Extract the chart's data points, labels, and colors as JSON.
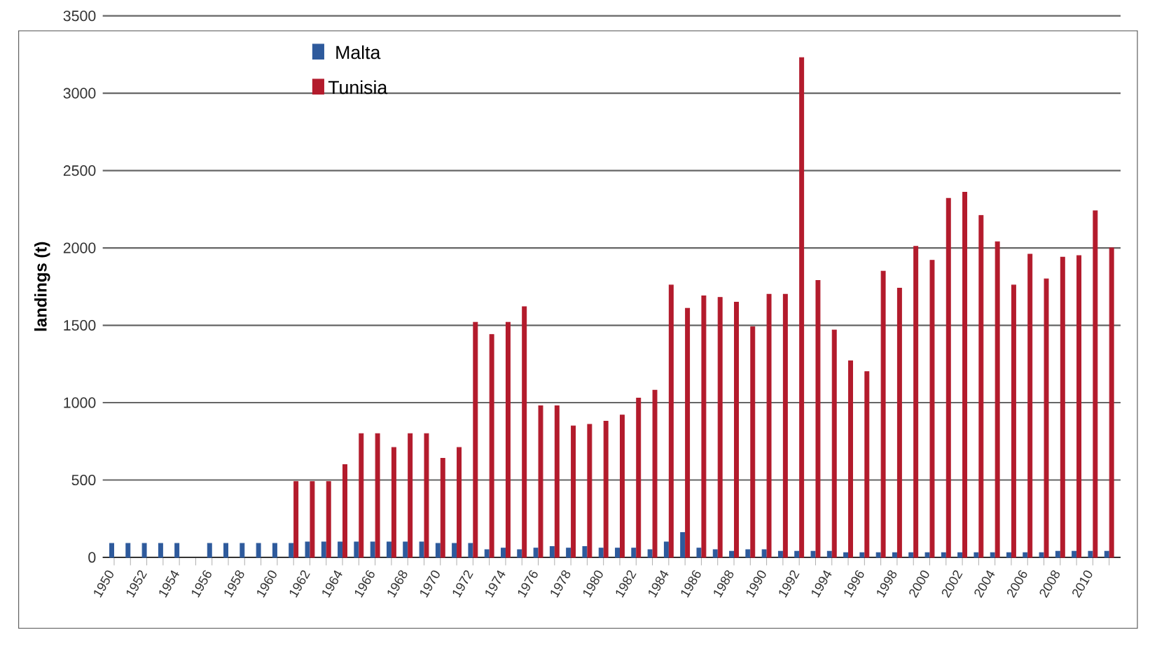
{
  "chart_data": {
    "type": "bar",
    "ylabel": "landings (t)",
    "categories": [
      "1950",
      null,
      "1952",
      null,
      "1954",
      null,
      "1956",
      null,
      "1958",
      null,
      "1960",
      null,
      "1962",
      null,
      "1964",
      null,
      "1966",
      null,
      "1968",
      null,
      "1970",
      null,
      "1972",
      null,
      "1974",
      null,
      "1976",
      null,
      "1978",
      null,
      "1980",
      null,
      "1982",
      null,
      "1984",
      null,
      "1986",
      null,
      "1988",
      null,
      "1990",
      null,
      "1992",
      null,
      "1994",
      null,
      "1996",
      null,
      "1998",
      null,
      "2000",
      null,
      "2002",
      null,
      "2004",
      null,
      "2006",
      null,
      "2008",
      null,
      "2010",
      null
    ],
    "series": [
      {
        "name": "Malta",
        "color": "#2e5a9c",
        "values": [
          90,
          90,
          90,
          90,
          90,
          null,
          90,
          90,
          90,
          90,
          90,
          90,
          100,
          100,
          100,
          100,
          100,
          100,
          100,
          100,
          90,
          90,
          90,
          50,
          60,
          50,
          60,
          70,
          60,
          70,
          60,
          60,
          60,
          50,
          100,
          160,
          60,
          50,
          40,
          50,
          50,
          40,
          40,
          40,
          40,
          30,
          30,
          30,
          30,
          30,
          30,
          30,
          30,
          30,
          30,
          30,
          30,
          30,
          40,
          40,
          40,
          40
        ]
      },
      {
        "name": "Tunisia",
        "color": "#b31b2c",
        "values": [
          null,
          null,
          null,
          null,
          null,
          null,
          null,
          null,
          null,
          null,
          null,
          490,
          490,
          490,
          600,
          800,
          800,
          710,
          800,
          800,
          640,
          710,
          1520,
          1440,
          1520,
          1620,
          980,
          980,
          850,
          860,
          880,
          920,
          1030,
          1080,
          1760,
          1610,
          1690,
          1680,
          1650,
          1490,
          1700,
          1700,
          3230,
          1790,
          1470,
          1270,
          1200,
          1850,
          1740,
          2010,
          1920,
          2320,
          2360,
          2210,
          2040,
          1760,
          1960,
          1800,
          1940,
          1950,
          2240,
          2000
        ]
      }
    ],
    "ylim": [
      0,
      3500
    ],
    "yticks": [
      0,
      500,
      1000,
      1500,
      2000,
      2500,
      3000,
      3500
    ],
    "grid": "y",
    "legend": "top left"
  }
}
